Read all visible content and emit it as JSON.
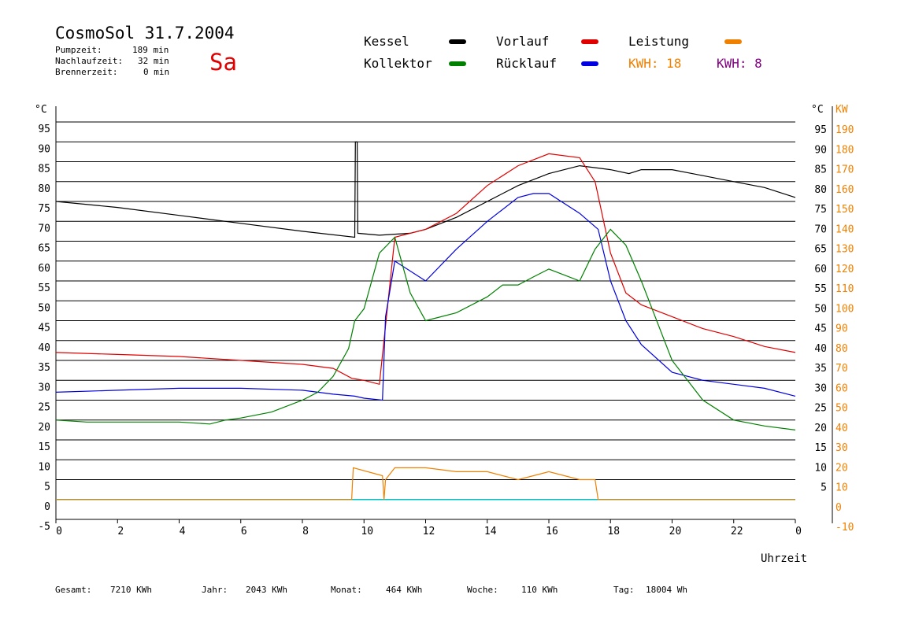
{
  "header": {
    "title": "CosmoSol 31.7.2004",
    "day": "Sa",
    "stats": [
      {
        "label": "Pumpzeit:",
        "value": "189 min"
      },
      {
        "label": "Nachlaufzeit:",
        "value": "32 min"
      },
      {
        "label": "Brennerzeit:",
        "value": "0 min"
      }
    ]
  },
  "legend": {
    "kessel": {
      "label": "Kessel",
      "color": "#000000"
    },
    "kollektor": {
      "label": "Kollektor",
      "color": "#008000"
    },
    "vorlauf": {
      "label": "Vorlauf",
      "color": "#e00000"
    },
    "ruecklauf": {
      "label": "Rücklauf",
      "color": "#0000e0"
    },
    "leistung": {
      "label": "Leistung",
      "color": "#f08000"
    },
    "kwh_orange": "KWH: 18",
    "kwh_purple": "KWH: 8",
    "purple_color": "#800080"
  },
  "footer": {
    "gesamt": {
      "label": "Gesamt:",
      "value": "7210 KWh"
    },
    "jahr": {
      "label": "Jahr:",
      "value": "2043 KWh"
    },
    "monat": {
      "label": "Monat:",
      "value": "464 KWh"
    },
    "woche": {
      "label": "Woche:",
      "value": "110 KWh"
    },
    "tag": {
      "label": "Tag:",
      "value": "18004 Wh"
    }
  },
  "chart_data": {
    "type": "line",
    "xlabel": "Uhrzeit",
    "ylabel_left": "°C",
    "ylabel_right_unit": "°C",
    "ylabel_right_kw": "KW",
    "xlim": [
      0,
      24
    ],
    "ylim": [
      -5,
      95
    ],
    "x_ticks": [
      "0",
      "2",
      "4",
      "6",
      "8",
      "10",
      "12",
      "14",
      "16",
      "18",
      "20",
      "22",
      "0"
    ],
    "y_ticks_left": [
      "-5",
      "0",
      "5",
      "10",
      "15",
      "20",
      "25",
      "30",
      "35",
      "40",
      "45",
      "50",
      "55",
      "60",
      "65",
      "70",
      "75",
      "80",
      "85",
      "90",
      "95"
    ],
    "y_ticks_right_c": [
      "5",
      "10",
      "15",
      "20",
      "25",
      "30",
      "35",
      "40",
      "45",
      "50",
      "55",
      "60",
      "65",
      "70",
      "75",
      "80",
      "85",
      "90",
      "95"
    ],
    "y_ticks_right_kw": [
      "-10",
      "0",
      "10",
      "20",
      "30",
      "40",
      "50",
      "60",
      "70",
      "80",
      "90",
      "100",
      "110",
      "120",
      "130",
      "140",
      "150",
      "160",
      "170",
      "180",
      "190"
    ],
    "grid": true,
    "series": [
      {
        "name": "Kessel",
        "color": "#000000",
        "x": [
          0,
          2,
          4,
          6,
          8,
          9.7,
          9.72,
          9.78,
          9.8,
          10.5,
          11.5,
          12,
          13,
          14,
          15,
          16,
          17,
          18,
          18.6,
          19,
          20,
          21,
          22,
          23,
          24
        ],
        "y": [
          75,
          73.5,
          71.5,
          69.5,
          67.5,
          66,
          90,
          90,
          67,
          66.5,
          67,
          68,
          71,
          75,
          79,
          82,
          84,
          83,
          82,
          83,
          83,
          81.5,
          80,
          78.5,
          76
        ]
      },
      {
        "name": "Vorlauf",
        "color": "#e00000",
        "x": [
          0,
          2,
          4,
          6,
          8,
          9,
          9.6,
          10,
          10.5,
          11,
          12,
          13,
          14,
          15,
          16,
          17,
          17.5,
          18,
          18.5,
          19,
          20,
          21,
          22,
          23,
          24
        ],
        "y": [
          37,
          36.5,
          36,
          35,
          34,
          33,
          30.5,
          30,
          29,
          66,
          68,
          72,
          79,
          84,
          87,
          86,
          80,
          62,
          52,
          49,
          46,
          43,
          41,
          38.5,
          37
        ]
      },
      {
        "name": "Rücklauf",
        "color": "#0000e0",
        "x": [
          0,
          2,
          4,
          6,
          8,
          9,
          9.7,
          10,
          10.6,
          10.7,
          11,
          12,
          13,
          14,
          15,
          15.5,
          16,
          17,
          17.6,
          18,
          18.5,
          19,
          20,
          21,
          22,
          23,
          24
        ],
        "y": [
          27,
          27.5,
          28,
          28,
          27.5,
          26.5,
          26,
          25.5,
          25,
          46,
          60,
          55,
          63,
          70,
          76,
          77,
          77,
          72,
          68,
          55,
          45,
          39,
          32,
          30,
          29,
          28,
          26
        ]
      },
      {
        "name": "Kollektor",
        "color": "#008000",
        "x": [
          0,
          1,
          2,
          3,
          4,
          5,
          5.5,
          6,
          7,
          8,
          8.5,
          9,
          9.5,
          9.7,
          10,
          10.5,
          11,
          11.5,
          12,
          13,
          14,
          14.5,
          15,
          15.5,
          16,
          17,
          17.5,
          18,
          18.5,
          19,
          20,
          21,
          22,
          23,
          24
        ],
        "y": [
          20,
          19.5,
          19.5,
          19.5,
          19.5,
          19,
          20,
          20.5,
          22,
          25,
          27,
          31,
          38,
          45,
          48,
          62,
          66,
          52,
          45,
          47,
          51,
          54,
          54,
          56,
          58,
          55,
          63,
          68,
          64,
          55,
          35,
          25,
          20,
          18.5,
          17.5
        ]
      },
      {
        "name": "Leistung",
        "color": "#f08000",
        "x": [
          0,
          9.6,
          9.65,
          10.6,
          10.65,
          10.7,
          11,
          11.5,
          12,
          13,
          14,
          15,
          15.5,
          16,
          17,
          17.5,
          17.6,
          24
        ],
        "y": [
          0,
          0,
          8,
          6,
          0,
          5,
          8,
          8,
          8,
          7,
          7,
          5,
          6,
          7,
          5,
          5,
          0,
          0
        ]
      }
    ],
    "zero_line_color": "#00c0c0"
  }
}
